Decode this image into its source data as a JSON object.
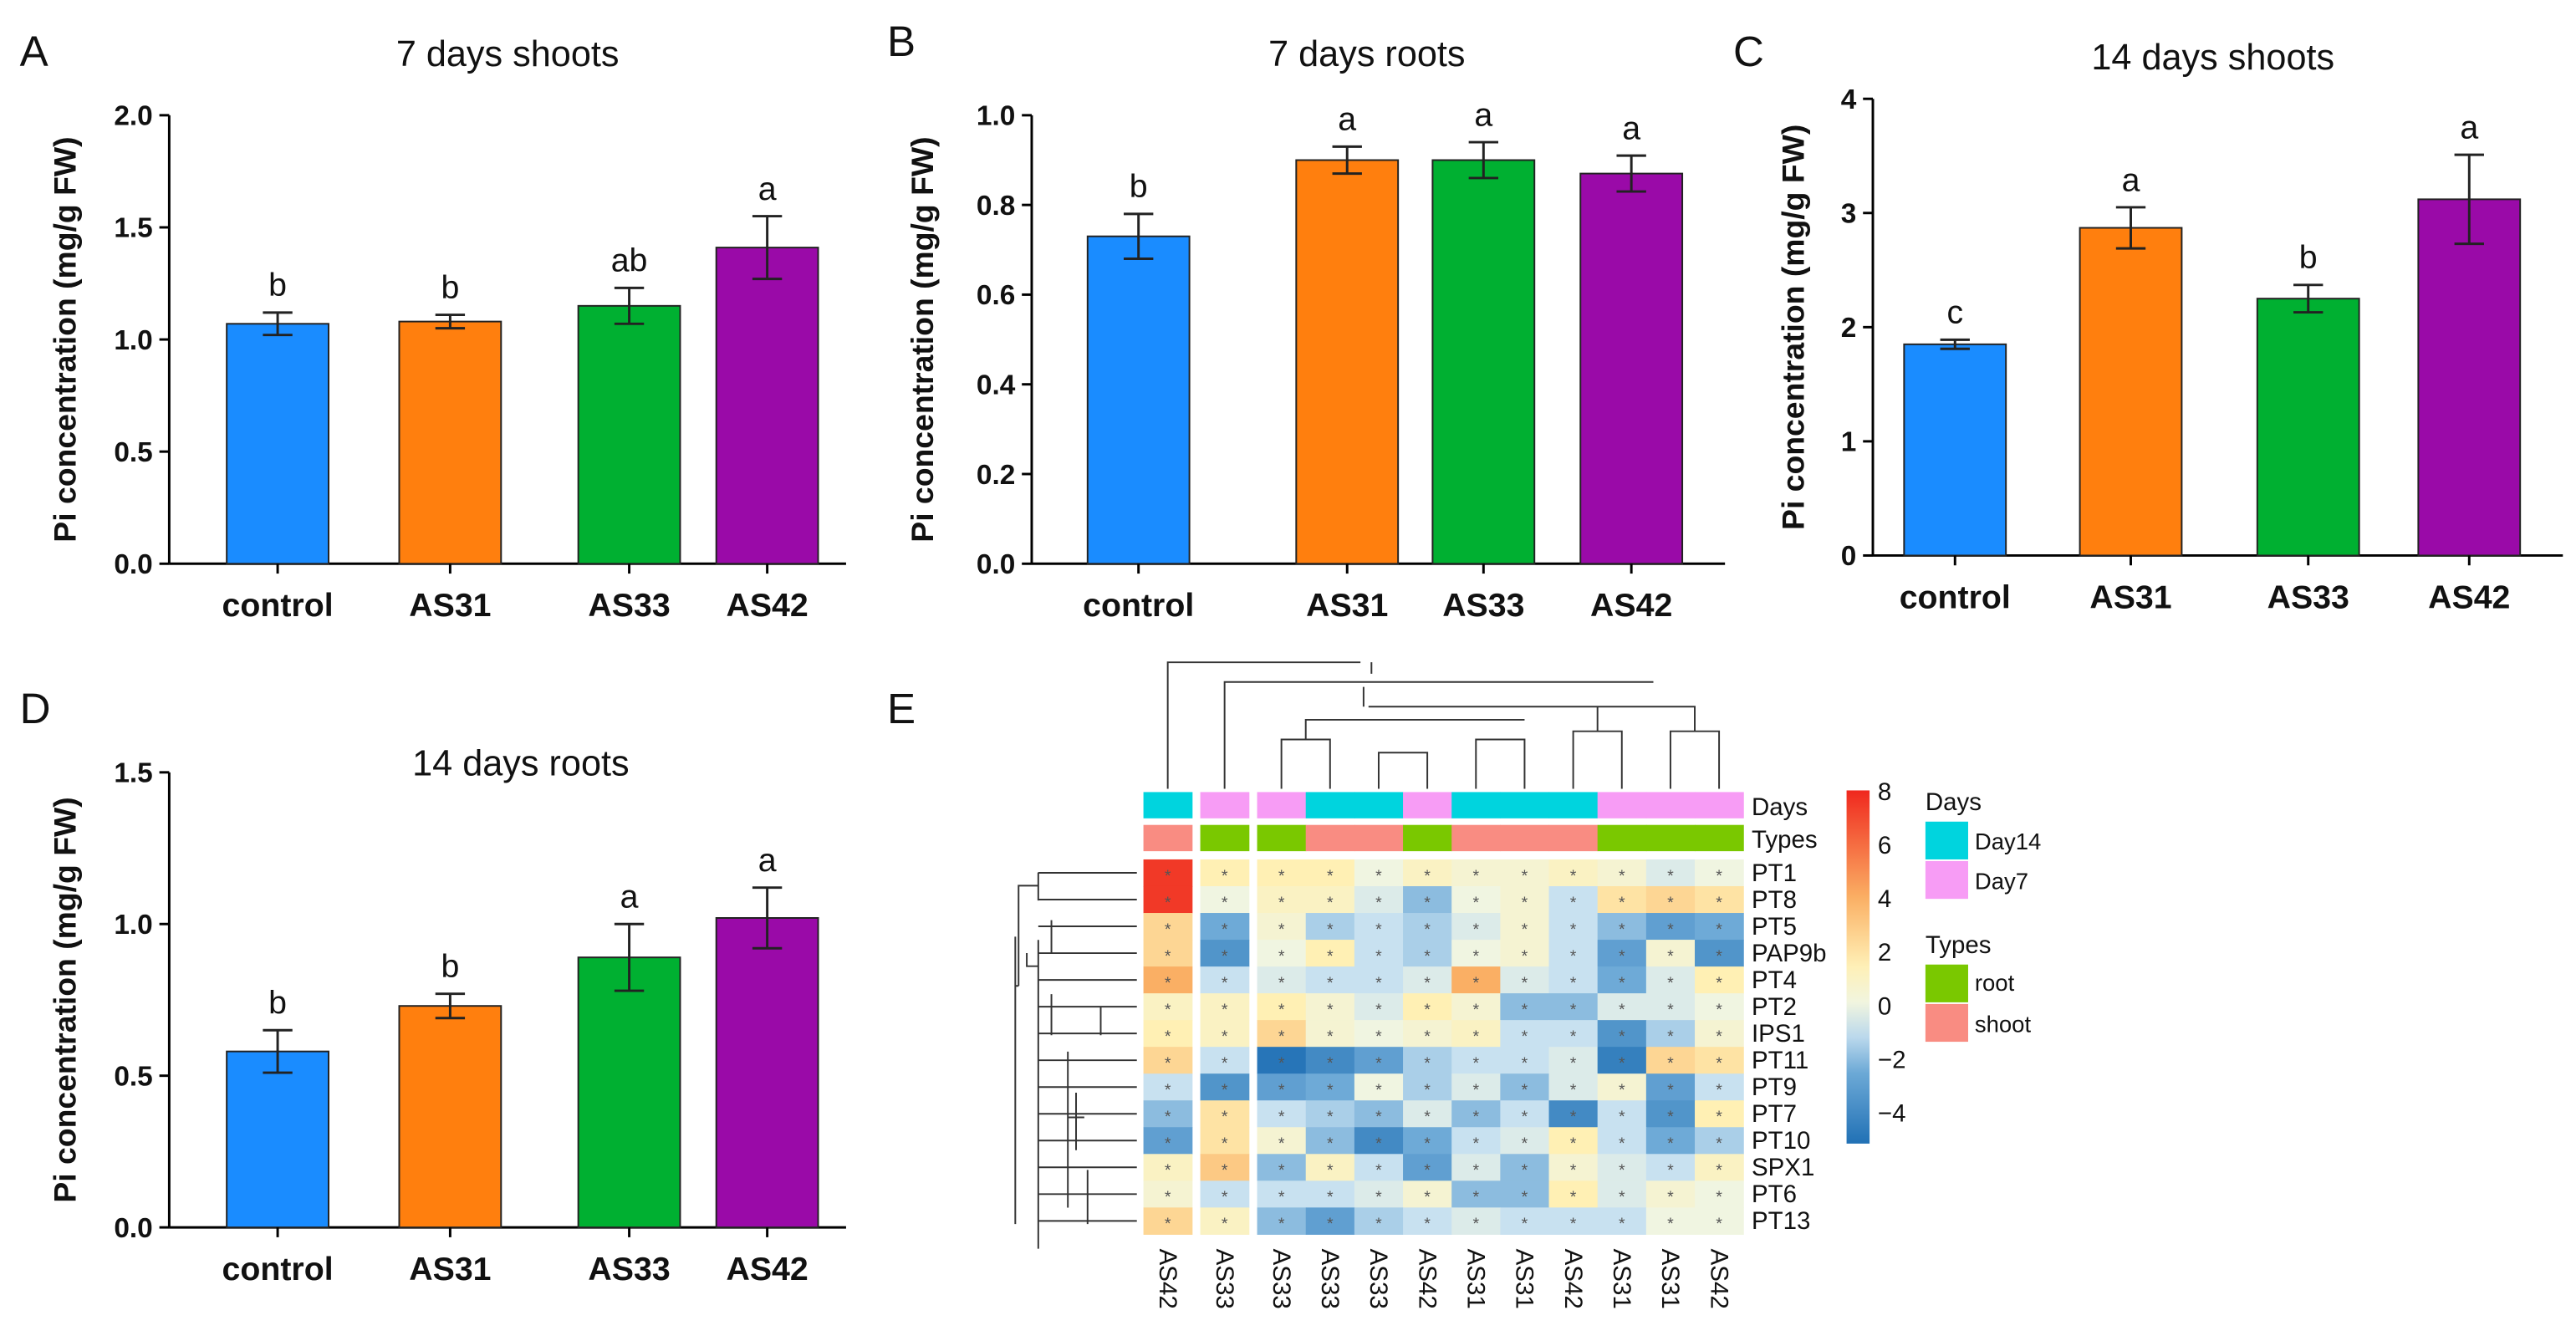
{
  "colors": {
    "control": "#1a8cff",
    "AS31": "#ff7f0e",
    "AS33": "#00b031",
    "AS42": "#9a0aa8",
    "day14": "#00d4de",
    "day7": "#f79cf5",
    "root": "#7ac800",
    "shoot": "#f98c82"
  },
  "chart_data": [
    {
      "panel": "A",
      "type": "bar",
      "title": "7 days shoots",
      "ylabel": "Pi concentration (mg/g FW)",
      "categories": [
        "control",
        "AS31",
        "AS33",
        "AS42"
      ],
      "values": [
        1.07,
        1.08,
        1.15,
        1.41
      ],
      "errors": [
        0.05,
        0.03,
        0.08,
        0.14
      ],
      "letters": [
        "b",
        "b",
        "ab",
        "a"
      ],
      "ylim": [
        0,
        2.0
      ],
      "yticks": [
        "0.0",
        "0.5",
        "1.0",
        "1.5",
        "2.0"
      ]
    },
    {
      "panel": "B",
      "type": "bar",
      "title": "7 days roots",
      "ylabel": "Pi concentration (mg/g FW)",
      "categories": [
        "control",
        "AS31",
        "AS33",
        "AS42"
      ],
      "values": [
        0.73,
        0.9,
        0.9,
        0.87
      ],
      "errors": [
        0.05,
        0.03,
        0.04,
        0.04
      ],
      "letters": [
        "b",
        "a",
        "a",
        "a"
      ],
      "ylim": [
        0,
        1.0
      ],
      "yticks": [
        "0.0",
        "0.2",
        "0.4",
        "0.6",
        "0.8",
        "1.0"
      ]
    },
    {
      "panel": "C",
      "type": "bar",
      "title": "14 days shoots",
      "ylabel": "Pi concentration (mg/g FW)",
      "categories": [
        "control",
        "AS31",
        "AS33",
        "AS42"
      ],
      "values": [
        1.85,
        2.87,
        2.25,
        3.12
      ],
      "errors": [
        0.04,
        0.18,
        0.12,
        0.39
      ],
      "letters": [
        "c",
        "a",
        "b",
        "a"
      ],
      "ylim": [
        0,
        4
      ],
      "yticks": [
        "0",
        "1",
        "2",
        "3",
        "4"
      ]
    },
    {
      "panel": "D",
      "type": "bar",
      "title": "14 days roots",
      "ylabel": "Pi concentration (mg/g FW)",
      "categories": [
        "control",
        "AS31",
        "AS33",
        "AS42"
      ],
      "values": [
        0.58,
        0.73,
        0.89,
        1.02
      ],
      "errors": [
        0.07,
        0.04,
        0.11,
        0.1
      ],
      "letters": [
        "b",
        "b",
        "a",
        "a"
      ],
      "ylim": [
        0,
        1.5
      ],
      "yticks": [
        "0.0",
        "0.5",
        "1.0",
        "1.5"
      ]
    },
    {
      "panel": "E",
      "type": "heatmap",
      "columns": [
        "AS42",
        "AS33",
        "AS33",
        "AS33",
        "AS33",
        "AS42",
        "AS31",
        "AS31",
        "AS42",
        "AS31",
        "AS31",
        "AS42"
      ],
      "days": [
        "Day14",
        "Day7",
        "Day7",
        "Day14",
        "Day14",
        "Day7",
        "Day14",
        "Day14",
        "Day14",
        "Day7",
        "Day7",
        "Day7"
      ],
      "types": [
        "shoot",
        "root",
        "root",
        "shoot",
        "shoot",
        "root",
        "shoot",
        "shoot",
        "shoot",
        "root",
        "root",
        "root"
      ],
      "rows": [
        "PT1",
        "PT8",
        "PT5",
        "PAP9b",
        "PT4",
        "PT2",
        "IPS1",
        "PT11",
        "PT9",
        "PT7",
        "PT10",
        "SPX1",
        "PT6",
        "PT13"
      ],
      "values": [
        [
          7.5,
          1.5,
          1.5,
          1.5,
          0,
          1,
          0.5,
          0.5,
          1,
          0.5,
          -0.5,
          0
        ],
        [
          7.5,
          0,
          1,
          1,
          -0.5,
          -2,
          0,
          0.5,
          -1,
          2,
          2.5,
          2
        ],
        [
          2.5,
          -2.5,
          0.5,
          -1.5,
          -1,
          -1.5,
          -0.5,
          0.5,
          -1,
          -2,
          -3,
          -2.5
        ],
        [
          2.5,
          -3.5,
          0,
          1.5,
          -1,
          -1.5,
          0,
          0.5,
          -1,
          -3,
          0.5,
          -3.5
        ],
        [
          4,
          -1,
          -0.5,
          -1,
          -1,
          -0.5,
          4,
          -0.5,
          -1,
          -2.5,
          -0.5,
          1.5
        ],
        [
          1,
          1,
          1.5,
          0.5,
          -0.5,
          1.5,
          0.5,
          -2,
          -2,
          -0.5,
          -0.5,
          0
        ],
        [
          1.5,
          1,
          2.5,
          0.5,
          0,
          0.5,
          1,
          -1,
          -1,
          -3.5,
          -1.5,
          0.5
        ],
        [
          2.5,
          -1,
          -5,
          -4,
          -3,
          -1.5,
          -1,
          -1,
          -0.5,
          -4.5,
          2.5,
          2
        ],
        [
          -1,
          -3.5,
          -3,
          -2.5,
          0,
          -1.5,
          -0.5,
          -2,
          -0.5,
          0.5,
          -3,
          -1
        ],
        [
          -2,
          2,
          -1,
          -1.5,
          -2,
          -0.5,
          -2,
          -1,
          -4,
          -1,
          -3.5,
          1.5
        ],
        [
          -3,
          2,
          0.5,
          -2,
          -4,
          -2.5,
          -1,
          -0.5,
          1.5,
          -1,
          -2.5,
          -1.5
        ],
        [
          1,
          3,
          -2,
          1,
          -1,
          -3,
          -0.5,
          -2,
          0.5,
          -0.5,
          -1,
          1
        ],
        [
          0.5,
          -1,
          -1,
          -1,
          -0.5,
          0.5,
          -2,
          -2,
          1.5,
          -0.5,
          0.5,
          0
        ],
        [
          2.5,
          1,
          -2,
          -3,
          -1.5,
          -1,
          -0.5,
          -1,
          -1,
          -1,
          0,
          0
        ]
      ],
      "star_mark": "*",
      "annotation_labels": {
        "days": "Days",
        "types": "Types"
      },
      "colorbar_ticks": [
        "8",
        "6",
        "4",
        "2",
        "0",
        "−2",
        "−4"
      ],
      "colorbar_range": [
        -5.2,
        8
      ],
      "legend": {
        "days_title": "Days",
        "days": [
          "Day14",
          "Day7"
        ],
        "types_title": "Types",
        "types": [
          "root",
          "shoot"
        ]
      }
    }
  ],
  "panel_labels": [
    "A",
    "B",
    "C",
    "D",
    "E"
  ]
}
